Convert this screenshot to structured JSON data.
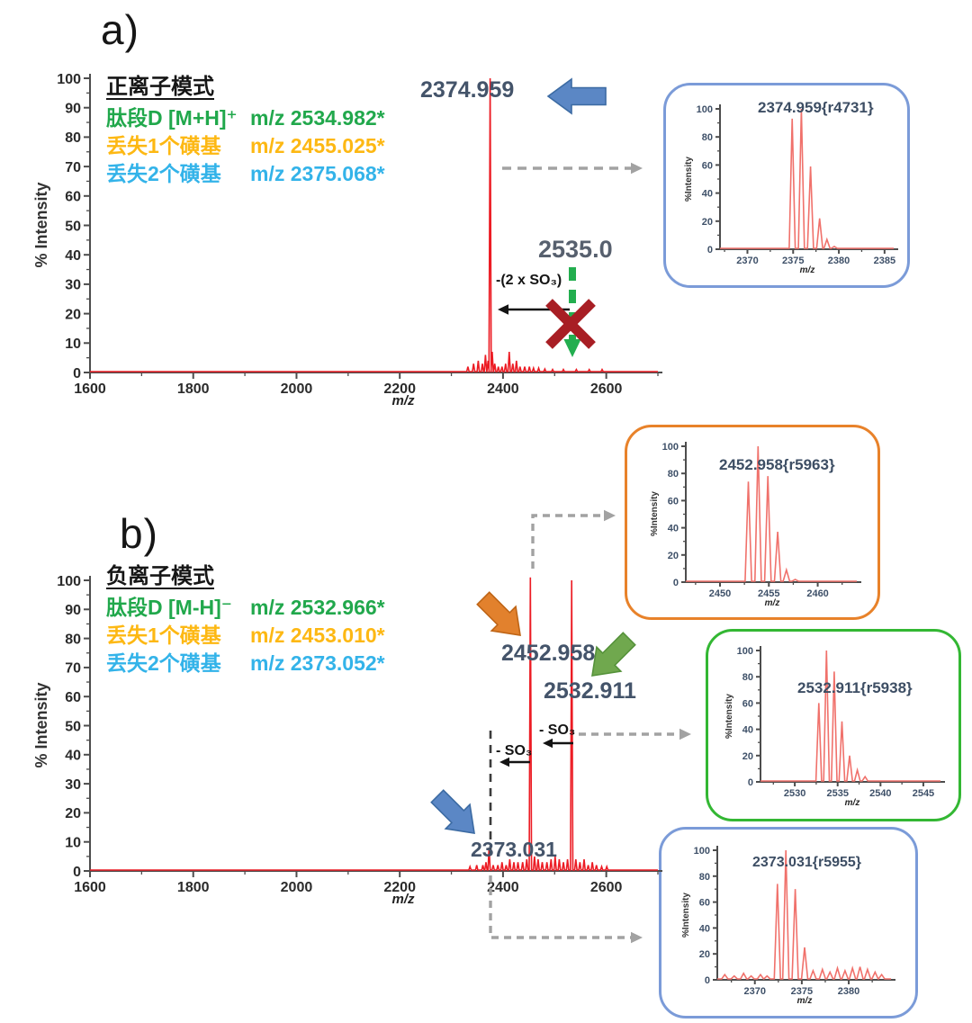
{
  "panels": {
    "a": {
      "label": "a)",
      "legend_title": "正离子模式",
      "legend": [
        {
          "name": "肽段D [M+H]⁺",
          "value": "m/z 2534.982*",
          "color": "#21a84c"
        },
        {
          "name": "丢失1个磺基",
          "value": "m/z 2455.025*",
          "color": "#fdb813"
        },
        {
          "name": "丢失2个磺基",
          "value": "m/z 2375.068*",
          "color": "#33b3e9"
        }
      ],
      "peak_label": "2374.959",
      "blocked_mass_label": "2535.0",
      "neutral_loss_label": "-(2 x SO₃)"
    },
    "b": {
      "label": "b)",
      "legend_title": "负离子模式",
      "legend": [
        {
          "name": "肽段D [M-H]⁻",
          "value": "m/z 2532.966*",
          "color": "#21a84c"
        },
        {
          "name": "丢失1个磺基",
          "value": "m/z 2453.010*",
          "color": "#fdb813"
        },
        {
          "name": "丢失2个磺基",
          "value": "m/z 2373.052*",
          "color": "#33b3e9"
        }
      ],
      "peak_label_2453": "2452.958",
      "peak_label_2533": "2532.911",
      "peak_label_2373": "2373.031",
      "neutral_loss_label_1": "- SO₃",
      "neutral_loss_label_2": "- SO₃"
    }
  },
  "colors": {
    "spectrum_main": "#ec1c24",
    "spectrum_inset": "#f0716b",
    "axis": "#4d4d4d",
    "peak_label_text": "#44546a",
    "blue_arrow": "#5b87c5",
    "orange_arrow": "#e2812d",
    "green_arrow": "#70a84e",
    "green_dashed_arrow": "#23ae4f",
    "red_x": "#a81e24",
    "gray_connector": "#a2a2a2",
    "inset_border_blue": "#7b9bd8",
    "inset_border_orange": "#e8822a",
    "inset_border_green": "#33b733"
  },
  "chart_data": [
    {
      "id": "main-positive",
      "type": "line",
      "title": "",
      "xlabel": "m/z",
      "ylabel": "% Intensity",
      "xlim": [
        1600,
        2700
      ],
      "ylim": [
        0,
        100
      ],
      "xticks": [
        1600,
        1800,
        2000,
        2200,
        2400,
        2600
      ],
      "yticks": [
        0,
        10,
        20,
        30,
        40,
        50,
        60,
        70,
        80,
        90,
        100
      ],
      "annotated_peak_mz": 2374.959,
      "peaks": [
        [
          2332,
          2
        ],
        [
          2343,
          3
        ],
        [
          2352,
          4
        ],
        [
          2360,
          3
        ],
        [
          2366,
          6
        ],
        [
          2371,
          4
        ],
        [
          2375,
          100
        ],
        [
          2379,
          7
        ],
        [
          2384,
          3
        ],
        [
          2391,
          2
        ],
        [
          2398,
          2
        ],
        [
          2405,
          3
        ],
        [
          2412,
          7
        ],
        [
          2419,
          3
        ],
        [
          2426,
          4
        ],
        [
          2433,
          2
        ],
        [
          2442,
          2
        ],
        [
          2451,
          2
        ],
        [
          2459,
          1.5
        ],
        [
          2469,
          1.5
        ],
        [
          2481,
          1.2
        ],
        [
          2496,
          1
        ],
        [
          2517,
          1
        ],
        [
          2542,
          1
        ],
        [
          2567,
          1
        ],
        [
          2592,
          1
        ]
      ]
    },
    {
      "id": "main-negative",
      "type": "line",
      "title": "",
      "xlabel": "m/z",
      "ylabel": "% Intensity",
      "xlim": [
        1600,
        2700
      ],
      "ylim": [
        0,
        100
      ],
      "xticks": [
        1600,
        1800,
        2000,
        2200,
        2400,
        2600
      ],
      "yticks": [
        0,
        10,
        20,
        30,
        40,
        50,
        60,
        70,
        80,
        90,
        100
      ],
      "annotated_peak_mz": [
        2373.031,
        2452.958,
        2532.911
      ],
      "peaks": [
        [
          2336,
          1.5
        ],
        [
          2349,
          2
        ],
        [
          2361,
          2
        ],
        [
          2367,
          3
        ],
        [
          2373,
          8
        ],
        [
          2381,
          2
        ],
        [
          2390,
          2
        ],
        [
          2398,
          3
        ],
        [
          2406,
          2
        ],
        [
          2413,
          4
        ],
        [
          2421,
          3
        ],
        [
          2429,
          3
        ],
        [
          2438,
          3
        ],
        [
          2446,
          4
        ],
        [
          2453,
          101
        ],
        [
          2461,
          5
        ],
        [
          2468,
          4
        ],
        [
          2476,
          3
        ],
        [
          2485,
          3
        ],
        [
          2493,
          4
        ],
        [
          2501,
          5
        ],
        [
          2509,
          4
        ],
        [
          2517,
          3
        ],
        [
          2525,
          4
        ],
        [
          2533,
          100
        ],
        [
          2541,
          4
        ],
        [
          2549,
          3
        ],
        [
          2557,
          4
        ],
        [
          2565,
          2
        ],
        [
          2573,
          3
        ],
        [
          2581,
          2
        ],
        [
          2591,
          1.5
        ],
        [
          2601,
          1.5
        ]
      ]
    },
    {
      "id": "inset-positive-2375",
      "type": "line",
      "title": "2374.959{r4731}",
      "xlabel": "m/z",
      "ylabel": "%Intensity",
      "xlim": [
        2367,
        2386
      ],
      "ylim": [
        0,
        100
      ],
      "xticks": [
        2370,
        2375,
        2380,
        2385
      ],
      "yticks": [
        0,
        20,
        40,
        60,
        80,
        100
      ],
      "peaks": [
        [
          2374.9,
          93
        ],
        [
          2375.9,
          100
        ],
        [
          2376.9,
          59
        ],
        [
          2377.9,
          22
        ],
        [
          2378.7,
          7
        ],
        [
          2379.5,
          2
        ]
      ]
    },
    {
      "id": "inset-negative-2453",
      "type": "line",
      "title": "2452.958{r5963}",
      "xlabel": "m/z",
      "ylabel": "%Intensity",
      "xlim": [
        2446.5,
        2464
      ],
      "ylim": [
        0,
        100
      ],
      "xticks": [
        2450,
        2455,
        2460
      ],
      "yticks": [
        0,
        20,
        40,
        60,
        80,
        100
      ],
      "peaks": [
        [
          2452.9,
          74
        ],
        [
          2453.9,
          100
        ],
        [
          2454.9,
          78
        ],
        [
          2455.9,
          37
        ],
        [
          2456.8,
          9
        ],
        [
          2457.7,
          2
        ]
      ]
    },
    {
      "id": "inset-negative-2533",
      "type": "line",
      "title": "2532.911{r5938}",
      "xlabel": "m/z",
      "ylabel": "%Intensity",
      "xlim": [
        2526,
        2547
      ],
      "ylim": [
        0,
        100
      ],
      "xticks": [
        2530,
        2535,
        2540,
        2545
      ],
      "yticks": [
        0,
        20,
        40,
        60,
        80,
        100
      ],
      "peaks": [
        [
          2532.8,
          60
        ],
        [
          2533.7,
          100
        ],
        [
          2534.6,
          84
        ],
        [
          2535.5,
          46
        ],
        [
          2536.4,
          20
        ],
        [
          2537.3,
          9
        ],
        [
          2538.2,
          4
        ]
      ]
    },
    {
      "id": "inset-negative-2373",
      "type": "line",
      "title": "2373.031{r5955}",
      "xlabel": "m/z",
      "ylabel": "%Intensity",
      "xlim": [
        2366,
        2384.5
      ],
      "ylim": [
        0,
        100
      ],
      "xticks": [
        2370,
        2375,
        2380
      ],
      "yticks": [
        0,
        20,
        40,
        60,
        80,
        100
      ],
      "peaks": [
        [
          2366.8,
          4
        ],
        [
          2367.8,
          3
        ],
        [
          2368.8,
          5
        ],
        [
          2369.6,
          3
        ],
        [
          2370.6,
          4
        ],
        [
          2371.3,
          3
        ],
        [
          2372.4,
          74
        ],
        [
          2373.3,
          100
        ],
        [
          2374.3,
          70
        ],
        [
          2375.3,
          25
        ],
        [
          2376.2,
          7
        ],
        [
          2377.2,
          8
        ],
        [
          2378,
          6
        ],
        [
          2378.8,
          9
        ],
        [
          2379.6,
          7
        ],
        [
          2380.4,
          9
        ],
        [
          2381.2,
          10
        ],
        [
          2382,
          8
        ],
        [
          2382.8,
          6
        ],
        [
          2383.5,
          4
        ]
      ]
    }
  ]
}
